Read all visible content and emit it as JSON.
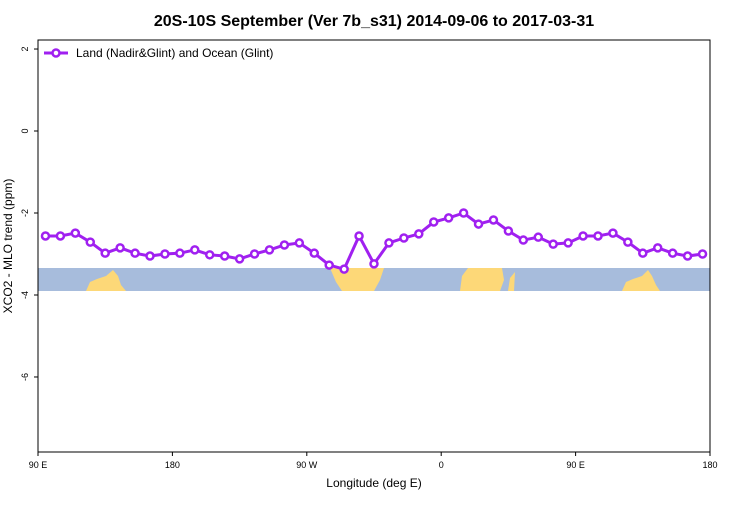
{
  "chart_data": {
    "type": "line",
    "title": "20S-10S September (Ver 7b_s31)   2014-09-06 to 2017-03-31",
    "xlabel": "Longitude (deg E)",
    "ylabel": "XCO2 - MLO trend (ppm)",
    "x": [
      95,
      105,
      115,
      125,
      135,
      145,
      155,
      165,
      175,
      185,
      195,
      205,
      215,
      225,
      235,
      245,
      255,
      265,
      275,
      285,
      295,
      305,
      315,
      325,
      335,
      345,
      355,
      365,
      375,
      385,
      395,
      405,
      415,
      425,
      435,
      445,
      455,
      465,
      475,
      485,
      495,
      505,
      515,
      525,
      535
    ],
    "series": [
      {
        "name": "Land (Nadir&Glint) and Ocean (Glint)",
        "color": "#a020f0",
        "values": [
          -2.56,
          -2.56,
          -2.49,
          -2.71,
          -2.98,
          -2.85,
          -2.98,
          -3.05,
          -3.0,
          -2.98,
          -2.9,
          -3.02,
          -3.05,
          -3.12,
          -3.0,
          -2.9,
          -2.78,
          -2.73,
          -2.98,
          -3.27,
          -3.37,
          -2.56,
          -3.24,
          -2.73,
          -2.61,
          -2.51,
          -2.22,
          -2.12,
          -2.0,
          -2.27,
          -2.17,
          -2.44,
          -2.66,
          -2.59,
          -2.76,
          -2.73,
          -2.56,
          -2.56,
          -2.49,
          -2.71,
          -2.98,
          -2.85,
          -2.98,
          -3.05,
          -3.0
        ]
      }
    ],
    "xlim": [
      90,
      540
    ],
    "xticks": [
      {
        "value": 90,
        "label": "90 E"
      },
      {
        "value": 180,
        "label": "180"
      },
      {
        "value": 270,
        "label": "90 W"
      },
      {
        "value": 360,
        "label": "0"
      },
      {
        "value": 450,
        "label": "90 E"
      },
      {
        "value": 540,
        "label": "180"
      }
    ],
    "ylim": [
      -7.83,
      2.22
    ],
    "yticks": [
      2,
      0,
      -2,
      -4,
      -6
    ],
    "legend": "top-left"
  }
}
